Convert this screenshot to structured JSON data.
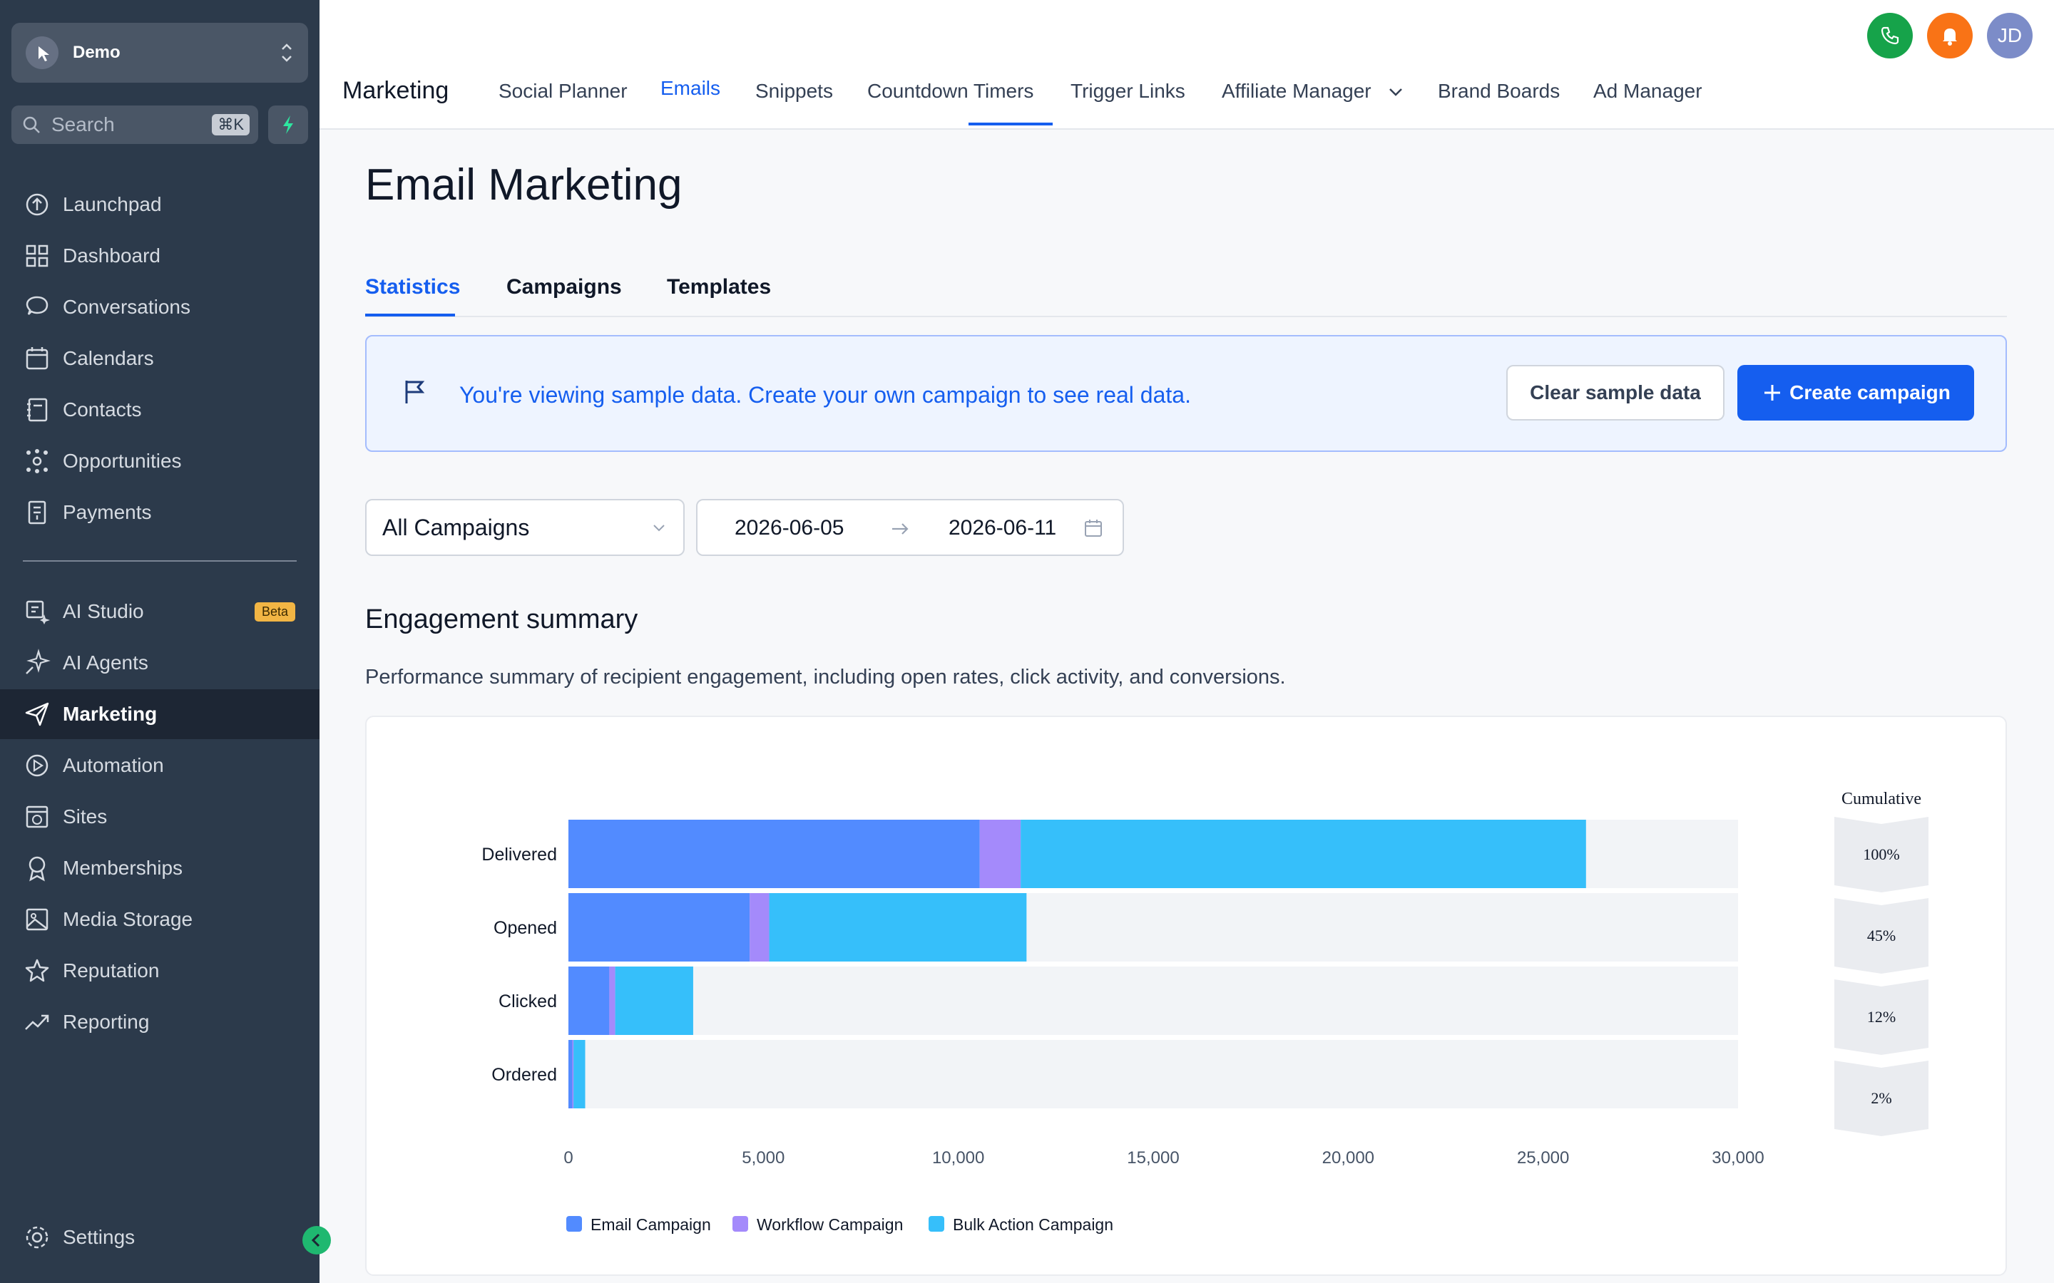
{
  "sidebar": {
    "account": {
      "name": "Demo"
    },
    "search": {
      "placeholder": "Search",
      "shortcut": "⌘K"
    },
    "items": [
      {
        "label": "Launchpad",
        "icon": "launchpad-icon"
      },
      {
        "label": "Dashboard",
        "icon": "dashboard-icon"
      },
      {
        "label": "Conversations",
        "icon": "chat-icon"
      },
      {
        "label": "Calendars",
        "icon": "calendar-icon"
      },
      {
        "label": "Contacts",
        "icon": "contacts-icon"
      },
      {
        "label": "Opportunities",
        "icon": "opportunities-icon"
      },
      {
        "label": "Payments",
        "icon": "payments-icon"
      }
    ],
    "items2": [
      {
        "label": "AI Studio",
        "icon": "ai-studio-icon",
        "badge": "Beta"
      },
      {
        "label": "AI Agents",
        "icon": "sparkle-icon"
      },
      {
        "label": "Marketing",
        "icon": "send-icon",
        "active": true
      },
      {
        "label": "Automation",
        "icon": "automation-icon"
      },
      {
        "label": "Sites",
        "icon": "sites-icon"
      },
      {
        "label": "Memberships",
        "icon": "badge-icon"
      },
      {
        "label": "Media Storage",
        "icon": "image-icon"
      },
      {
        "label": "Reputation",
        "icon": "star-icon"
      },
      {
        "label": "Reporting",
        "icon": "trend-icon"
      }
    ],
    "settings": "Settings"
  },
  "topbar": {
    "module": "Marketing",
    "tabs": [
      "Social Planner",
      "Emails",
      "Snippets",
      "Countdown Timers",
      "Trigger Links",
      "Affiliate Manager",
      "Brand Boards",
      "Ad Manager"
    ],
    "active_tab": "Emails",
    "user_initials": "JD",
    "colors": {
      "phone": "#16a34a",
      "bell": "#f97316",
      "avatar": "#7c8cc8"
    }
  },
  "page": {
    "title": "Email Marketing",
    "subtabs": [
      "Statistics",
      "Campaigns",
      "Templates"
    ],
    "active_subtab": "Statistics"
  },
  "banner": {
    "message": "You're viewing sample data. Create your own campaign to see real data.",
    "clear_label": "Clear sample data",
    "create_label": "Create campaign"
  },
  "filters": {
    "campaign": "All Campaigns",
    "start_date": "2026-06-05",
    "end_date": "2026-06-11"
  },
  "engagement": {
    "title": "Engagement summary",
    "description": "Performance summary of recipient engagement, including open rates, click activity, and conversions."
  },
  "chart_data": {
    "type": "bar",
    "orientation": "horizontal",
    "stacked": true,
    "categories": [
      "Delivered",
      "Opened",
      "Clicked",
      "Ordered"
    ],
    "series": [
      {
        "name": "Email Campaign",
        "color": "#528bff",
        "values": [
          10550,
          4650,
          1050,
          100
        ]
      },
      {
        "name": "Workflow Campaign",
        "color": "#a48afb",
        "values": [
          1050,
          500,
          150,
          30
        ]
      },
      {
        "name": "Bulk Action Campaign",
        "color": "#36bffa",
        "values": [
          14500,
          6600,
          2000,
          300
        ]
      }
    ],
    "xlim": [
      0,
      30000
    ],
    "xticks": [
      "0",
      "5,000",
      "10,000",
      "15,000",
      "20,000",
      "25,000",
      "30,000"
    ],
    "cumulative": {
      "title": "Cumulative",
      "values": [
        "100%",
        "45%",
        "12%",
        "2%"
      ]
    },
    "legend": "bottom-left"
  }
}
